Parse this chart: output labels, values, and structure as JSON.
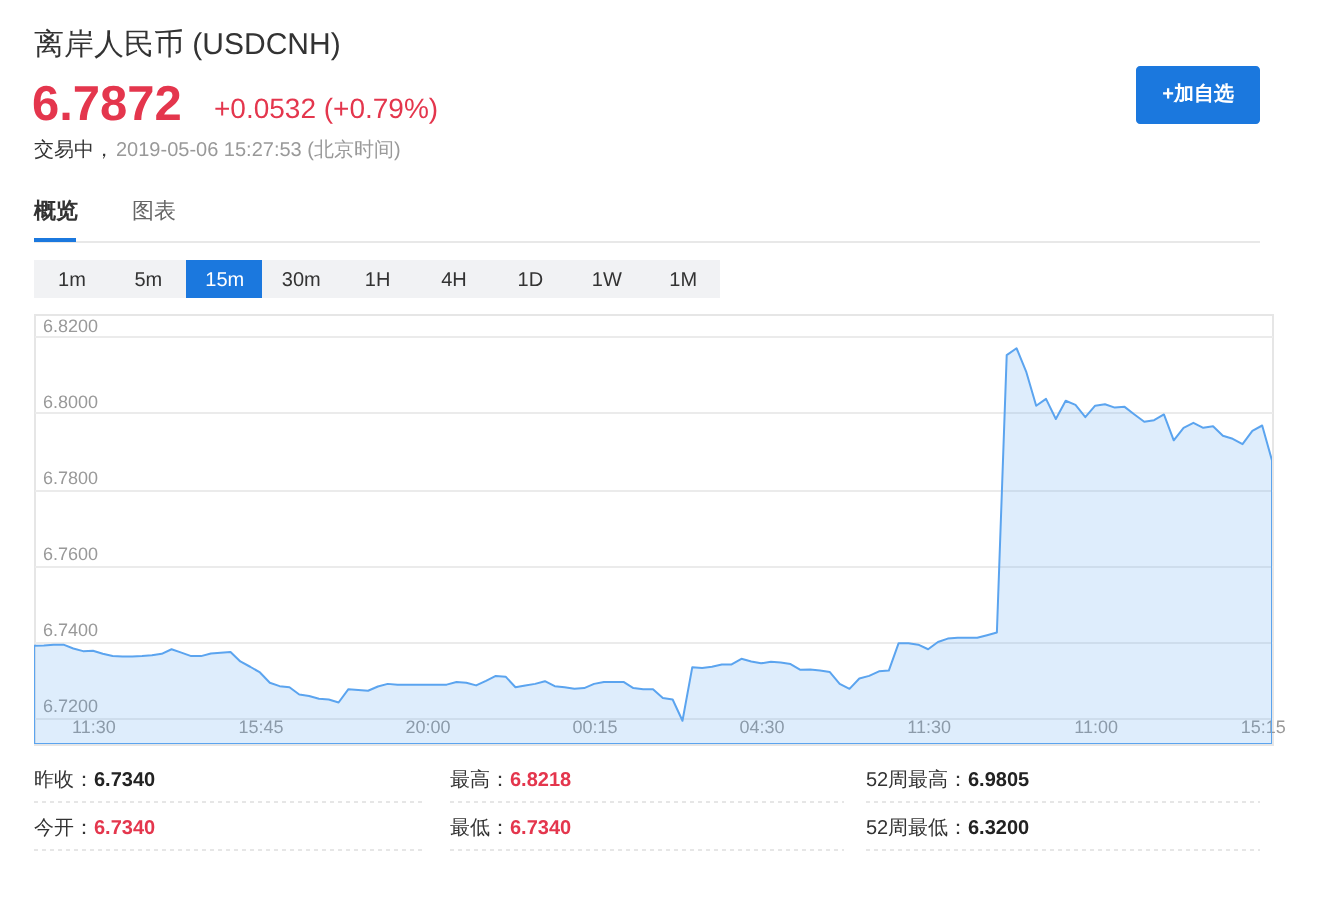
{
  "chart_data": {
    "type": "area",
    "title": "离岸人民币 (USDCNH)",
    "categories": [
      null,
      null,
      null,
      null,
      null,
      null,
      "11:30",
      null,
      null,
      null,
      null,
      null,
      null,
      null,
      null,
      null,
      null,
      null,
      null,
      null,
      null,
      null,
      null,
      "15:45",
      null,
      null,
      null,
      null,
      null,
      null,
      null,
      null,
      null,
      null,
      null,
      null,
      null,
      null,
      null,
      null,
      "20:00",
      null,
      null,
      null,
      null,
      null,
      null,
      null,
      null,
      null,
      null,
      null,
      null,
      null,
      null,
      null,
      null,
      "00:15",
      null,
      null,
      null,
      null,
      null,
      null,
      null,
      null,
      null,
      null,
      null,
      null,
      null,
      null,
      null,
      null,
      "04:30",
      null,
      null,
      null,
      null,
      null,
      null,
      null,
      null,
      null,
      null,
      null,
      null,
      null,
      null,
      null,
      null,
      "11:30",
      null,
      null,
      null,
      null,
      null,
      null,
      null,
      null,
      null,
      null,
      null,
      null,
      null,
      null,
      null,
      null,
      "11:00",
      null,
      null,
      null,
      null,
      null,
      null,
      null,
      null,
      null,
      null,
      null,
      null,
      null,
      null,
      null,
      null,
      "15:15",
      null
    ],
    "series": [
      {
        "color": "#5ba4ef",
        "values": [
          6.7388,
          6.7389,
          6.7391,
          6.7391,
          6.7381,
          6.7374,
          6.7375,
          6.7367,
          6.7361,
          6.736,
          6.736,
          6.7361,
          6.7363,
          6.7367,
          6.7379,
          6.737,
          6.7361,
          6.7361,
          6.7368,
          6.737,
          6.7372,
          6.7347,
          6.7333,
          6.7318,
          6.7291,
          6.7282,
          6.7279,
          6.726,
          6.7256,
          6.7249,
          6.7247,
          6.7239,
          6.7274,
          6.7272,
          6.727,
          6.7281,
          6.7288,
          6.7286,
          6.7286,
          6.7286,
          6.7286,
          6.7286,
          6.7286,
          6.7293,
          6.7291,
          6.7284,
          6.7296,
          6.7309,
          6.7307,
          6.7279,
          6.7284,
          6.7288,
          6.7295,
          6.7282,
          6.7279,
          6.7275,
          6.7277,
          6.7288,
          6.7293,
          6.7293,
          6.7293,
          6.7277,
          6.7274,
          6.7274,
          6.7251,
          6.7247,
          6.7191,
          6.7332,
          6.733,
          6.7333,
          6.7339,
          6.7339,
          6.7354,
          6.7347,
          6.7342,
          6.7346,
          6.7344,
          6.734,
          6.7325,
          6.7326,
          6.7323,
          6.7319,
          6.7288,
          6.7275,
          6.7302,
          6.7309,
          6.7321,
          6.7323,
          6.7395,
          6.7395,
          6.7391,
          6.7379,
          6.7398,
          6.7407,
          6.7409,
          6.7409,
          6.7409,
          6.7416,
          6.7423,
          6.8152,
          6.817,
          6.8107,
          6.8019,
          6.8037,
          6.7984,
          6.8032,
          6.8021,
          6.7989,
          6.8019,
          6.8023,
          6.8014,
          6.8016,
          6.7996,
          6.7977,
          6.7981,
          6.7996,
          6.7928,
          6.7961,
          6.7974,
          6.7961,
          6.7965,
          6.794,
          6.7932,
          6.7918,
          6.7953,
          6.7967,
          6.7875
        ]
      }
    ],
    "ylim": [
      6.713,
      6.826
    ],
    "yticks": [
      {
        "value": 6.72,
        "label": "6.7200"
      },
      {
        "value": 6.74,
        "label": "6.7400"
      },
      {
        "value": 6.76,
        "label": "6.7600"
      },
      {
        "value": 6.78,
        "label": "6.7800"
      },
      {
        "value": 6.8,
        "label": "6.8000"
      },
      {
        "value": 6.82,
        "label": "6.8200"
      }
    ],
    "grid": "y",
    "annotations": [
      "6.7872",
      "+0.0532 (+0.79%)",
      "交易中，",
      "2019-05-06 15:27:53 (北京时间)",
      "概览",
      "图表",
      "+加自选",
      "1m",
      "5m",
      "15m",
      "30m",
      "1H",
      "4H",
      "1D",
      "1W",
      "1M",
      "昨收：",
      "6.7340",
      "最高：",
      "6.8218",
      "52周最高：",
      "6.9805",
      "今开：",
      "6.7340",
      "最低：",
      "6.7340",
      "52周最低：",
      "6.3200"
    ]
  }
}
